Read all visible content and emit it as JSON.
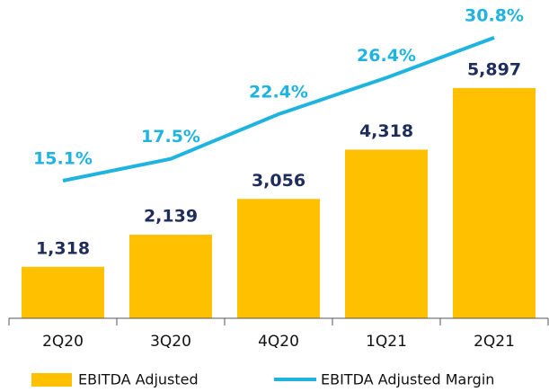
{
  "chart_data": {
    "type": "combo",
    "categories": [
      "2Q20",
      "3Q20",
      "4Q20",
      "1Q21",
      "2Q21"
    ],
    "series": [
      {
        "name": "EBITDA Adjusted",
        "type": "bar",
        "color": "#ffc000",
        "values": [
          1318,
          2139,
          3056,
          4318,
          5897
        ],
        "value_labels": [
          "1,318",
          "2,139",
          "3,056",
          "4,318",
          "5,897"
        ],
        "label_color": "#1f2d5c"
      },
      {
        "name": "EBITDA Adjusted Margin",
        "type": "line",
        "axis": "y2",
        "color": "#1fb4e0",
        "values": [
          15.1,
          17.5,
          22.4,
          26.4,
          30.8
        ],
        "value_labels": [
          "15.1%",
          "17.5%",
          "22.4%",
          "26.4%",
          "30.8%"
        ],
        "label_color": "#1fb4e0"
      }
    ],
    "ylim": [
      0,
      7000
    ],
    "y2lim": [
      0,
      30
    ],
    "legend": "bottom"
  }
}
